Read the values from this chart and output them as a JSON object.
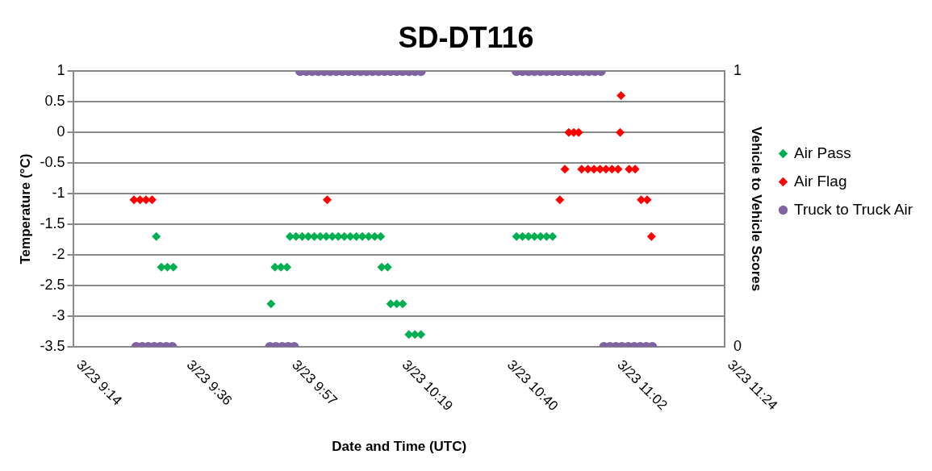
{
  "chart_data": {
    "type": "scatter",
    "title": "SD-DT116",
    "xlabel": "Date and Time (UTC)",
    "ylabel": "Temperature (°C)",
    "y2label": "Vehicle to Vehicle Scores",
    "xlim": [
      "--03-23T09:14",
      "--03-23T11:24"
    ],
    "xticks": [
      {
        "value": "--03-23T09:14",
        "label": "3/23 9:14"
      },
      {
        "value": "--03-23T09:36",
        "label": "3/23 9:36"
      },
      {
        "value": "--03-23T09:57",
        "label": "3/23 9:57"
      },
      {
        "value": "--03-23T10:19",
        "label": "3/23 10:19"
      },
      {
        "value": "--03-23T10:40",
        "label": "3/23 10:40"
      },
      {
        "value": "--03-23T11:02",
        "label": "3/23 11:02"
      },
      {
        "value": "--03-23T11:24",
        "label": "3/23 11:24"
      }
    ],
    "ylim": [
      -3.5,
      1
    ],
    "yticks": [
      -3.5,
      -3,
      -2.5,
      -2,
      -1.5,
      -1,
      -0.5,
      0,
      0.5,
      1
    ],
    "y2lim": [
      0,
      1
    ],
    "y2ticks": [
      0,
      1
    ],
    "grid": "y",
    "legend": "right",
    "series": [
      {
        "name": "Air Pass",
        "color": "#00b050",
        "marker": "diamond",
        "x": [
          "--03-23T09:30:29",
          "--03-23T09:31:30",
          "--03-23T09:32:42",
          "--03-23T09:33:54",
          "--03-23T09:53:24",
          "--03-23T09:54:11",
          "--03-23T09:55:23",
          "--03-23T09:56:35",
          "--03-23T09:57:11",
          "--03-23T09:58:23",
          "--03-23T09:59:38",
          "--03-23T10:00:50",
          "--03-23T10:02:02",
          "--03-23T10:03:14",
          "--03-23T10:04:26",
          "--03-23T10:05:38",
          "--03-23T10:06:50",
          "--03-23T10:08:02",
          "--03-23T10:09:14",
          "--03-23T10:10:26",
          "--03-23T10:11:38",
          "--03-23T10:12:54",
          "--03-23T10:14:06",
          "--03-23T10:15:18",
          "--03-23T10:15:29",
          "--03-23T10:16:41",
          "--03-23T10:17:17",
          "--03-23T10:18:29",
          "--03-23T10:19:41",
          "--03-23T10:20:56",
          "--03-23T10:22:08",
          "--03-23T10:23:20",
          "--03-23T10:42:25",
          "--03-23T10:43:37",
          "--03-23T10:44:49",
          "--03-23T10:46:01",
          "--03-23T10:47:13",
          "--03-23T10:48:25",
          "--03-23T10:49:37"
        ],
        "values": [
          -1.7,
          -2.2,
          -2.2,
          -2.2,
          -2.8,
          -2.2,
          -2.2,
          -2.2,
          -1.7,
          -1.7,
          -1.7,
          -1.7,
          -1.7,
          -1.7,
          -1.7,
          -1.7,
          -1.7,
          -1.7,
          -1.7,
          -1.7,
          -1.7,
          -1.7,
          -1.7,
          -1.7,
          -2.2,
          -2.2,
          -2.8,
          -2.8,
          -2.8,
          -3.3,
          -3.3,
          -3.3,
          -1.7,
          -1.7,
          -1.7,
          -1.7,
          -1.7,
          -1.7,
          -1.7
        ]
      },
      {
        "name": "Air Flag",
        "color": "#ff0000",
        "marker": "diamond",
        "x": [
          "--03-23T09:26:02",
          "--03-23T09:27:14",
          "--03-23T09:28:26",
          "--03-23T09:29:38",
          "--03-23T10:04:37",
          "--03-23T10:51:04",
          "--03-23T10:52:05",
          "--03-23T10:52:52",
          "--03-23T10:53:53",
          "--03-23T10:54:50",
          "--03-23T10:55:26",
          "--03-23T10:56:42",
          "--03-23T10:57:54",
          "--03-23T10:59:06",
          "--03-23T11:00:18",
          "--03-23T11:01:30",
          "--03-23T11:02:42",
          "--03-23T11:03:07",
          "--03-23T11:03:18",
          "--03-23T11:04:55",
          "--03-23T11:06:07",
          "--03-23T11:07:19",
          "--03-23T11:08:31",
          "--03-23T11:09:22"
        ],
        "values": [
          -1.1,
          -1.1,
          -1.1,
          -1.1,
          -1.1,
          -1.1,
          -0.6,
          0,
          0,
          0,
          -0.6,
          -0.6,
          -0.6,
          -0.6,
          -0.6,
          -0.6,
          -0.6,
          0,
          0.6,
          -0.6,
          -0.6,
          -1.1,
          -1.1,
          -1.7
        ]
      },
      {
        "name": "Truck to Truck Air",
        "color": "#8064a2",
        "marker": "circle",
        "axis": "y2",
        "x": [
          "--03-23T09:26:28",
          "--03-23T09:27:40",
          "--03-23T09:28:52",
          "--03-23T09:30:04",
          "--03-23T09:31:16",
          "--03-23T09:32:28",
          "--03-23T09:33:40",
          "--03-23T09:53:10",
          "--03-23T09:54:22",
          "--03-23T09:55:37",
          "--03-23T09:56:49",
          "--03-23T09:58:01",
          "--03-23T09:59:13",
          "--03-23T10:00:25",
          "--03-23T10:01:37",
          "--03-23T10:02:49",
          "--03-23T10:04:01",
          "--03-23T10:05:13",
          "--03-23T10:06:25",
          "--03-23T10:07:37",
          "--03-23T10:08:53",
          "--03-23T10:10:05",
          "--03-23T10:11:17",
          "--03-23T10:12:29",
          "--03-23T10:13:41",
          "--03-23T10:14:53",
          "--03-23T10:16:05",
          "--03-23T10:17:17",
          "--03-23T10:18:29",
          "--03-23T10:19:41",
          "--03-23T10:20:56",
          "--03-23T10:22:08",
          "--03-23T10:23:20",
          "--03-23T10:42:25",
          "--03-23T10:43:37",
          "--03-23T10:44:49",
          "--03-23T10:46:01",
          "--03-23T10:47:13",
          "--03-23T10:48:25",
          "--03-23T10:49:37",
          "--03-23T10:50:49",
          "--03-23T10:52:05",
          "--03-23T10:53:17",
          "--03-23T10:54:29",
          "--03-23T10:55:41",
          "--03-23T10:56:53",
          "--03-23T10:58:05",
          "--03-23T10:59:17",
          "--03-23T10:59:53",
          "--03-23T11:01:05",
          "--03-23T11:02:17",
          "--03-23T11:03:29",
          "--03-23T11:04:44",
          "--03-23T11:05:56",
          "--03-23T11:07:08",
          "--03-23T11:08:20",
          "--03-23T11:09:32"
        ],
        "values": [
          0,
          0,
          0,
          0,
          0,
          0,
          0,
          0,
          0,
          0,
          0,
          0,
          1,
          1,
          1,
          1,
          1,
          1,
          1,
          1,
          1,
          1,
          1,
          1,
          1,
          1,
          1,
          1,
          1,
          1,
          1,
          1,
          1,
          1,
          1,
          1,
          1,
          1,
          1,
          1,
          1,
          1,
          1,
          1,
          1,
          1,
          1,
          1,
          0,
          0,
          0,
          0,
          0,
          0,
          0,
          0,
          0
        ]
      }
    ]
  }
}
